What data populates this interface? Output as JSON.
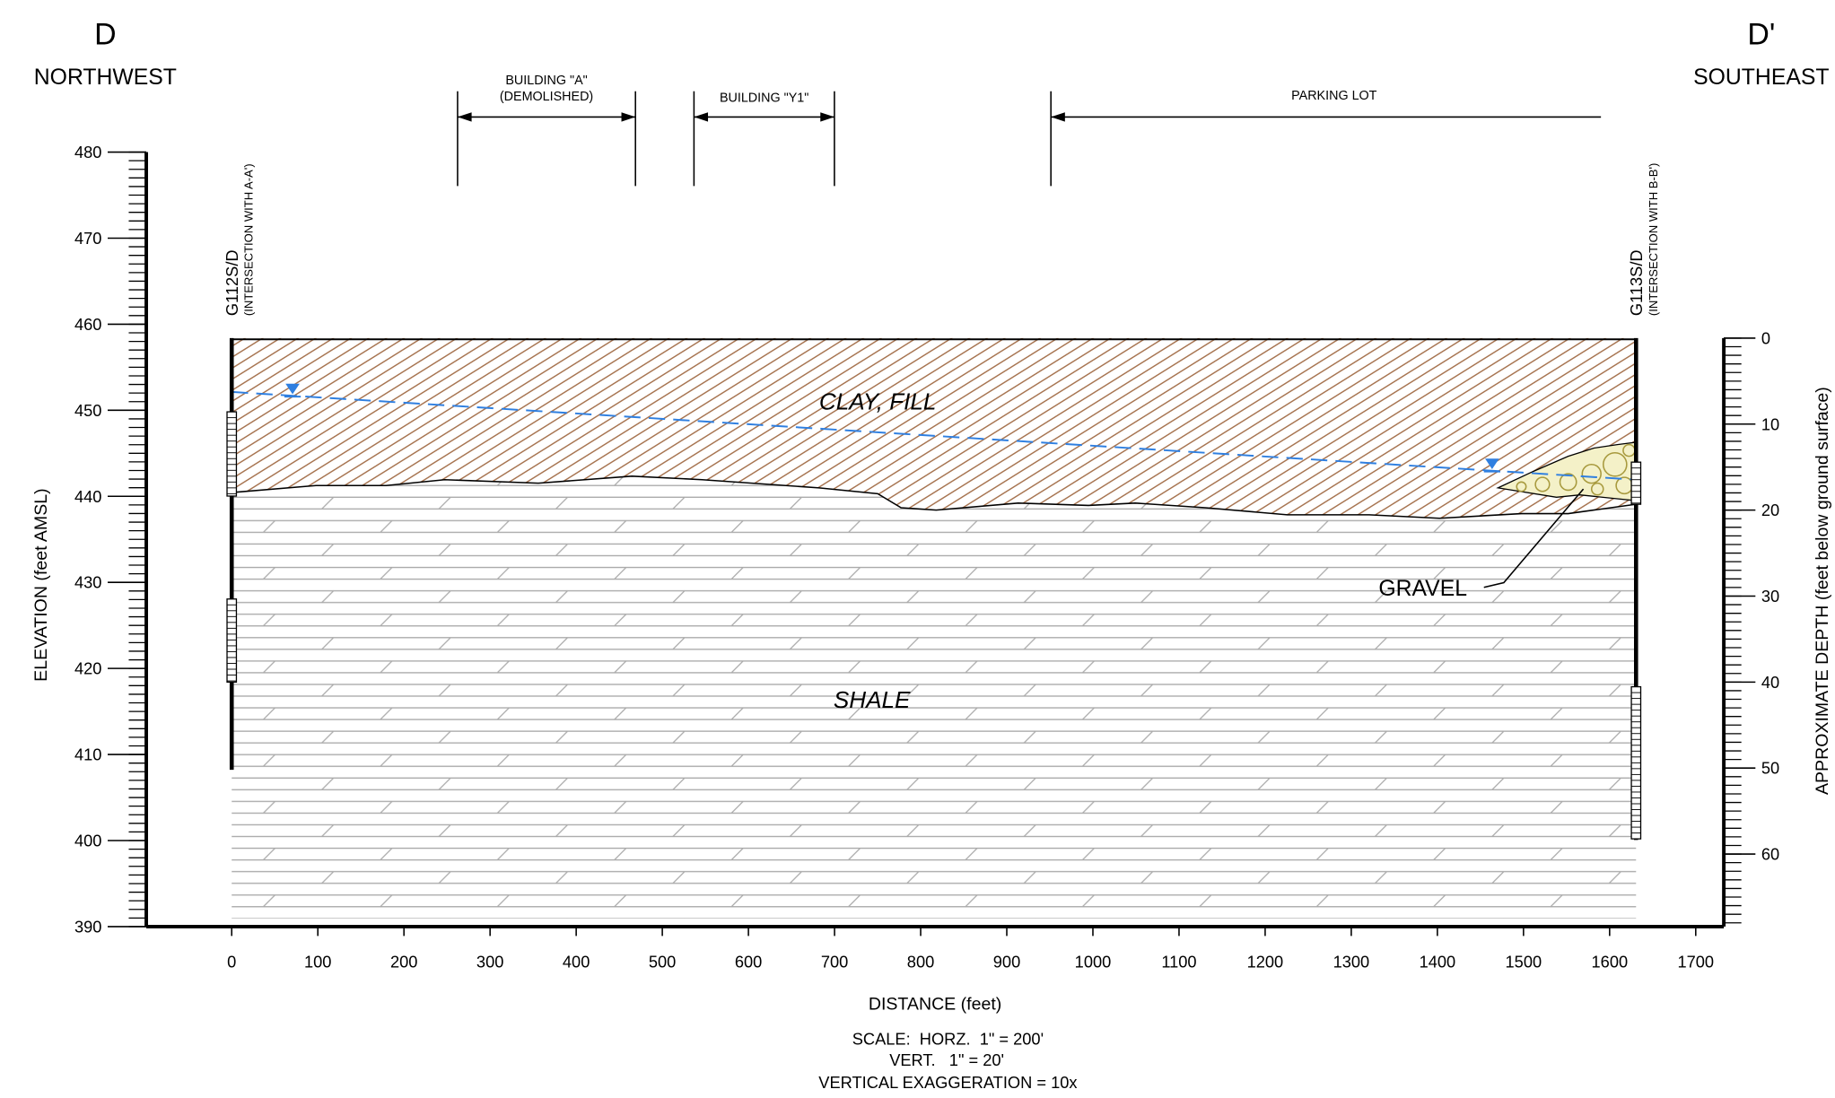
{
  "header": {
    "left_label": "D",
    "left_direction": "NORTHWEST",
    "right_label": "D'",
    "right_direction": "SOUTHEAST"
  },
  "features": [
    {
      "lines": [
        "BUILDING \"A\"",
        "(DEMOLISHED)"
      ]
    },
    {
      "lines": [
        "BUILDING \"Y1\""
      ]
    },
    {
      "lines": [
        "PARKING LOT"
      ]
    }
  ],
  "wells": [
    {
      "name": "G112S/D",
      "note": "(INTERSECTION WITH A-A')"
    },
    {
      "name": "G113S/D",
      "note": "(INTERSECTION WITH B-B')"
    }
  ],
  "layers": {
    "clay": "CLAY, FILL",
    "shale": "SHALE",
    "gravel": "GRAVEL"
  },
  "x_axis": {
    "title": "DISTANCE (feet)",
    "ticks": [
      0,
      100,
      200,
      300,
      400,
      500,
      600,
      700,
      800,
      900,
      1000,
      1100,
      1200,
      1300,
      1400,
      1500,
      1600,
      1700
    ]
  },
  "y_axis": {
    "title": "ELEVATION (feet AMSL)",
    "ticks": [
      390,
      400,
      410,
      420,
      430,
      440,
      450,
      460,
      470,
      480
    ]
  },
  "y2_axis": {
    "title": "APPROXIMATE DEPTH (feet below ground surface)",
    "ticks": [
      0,
      10,
      20,
      30,
      40,
      50,
      60
    ]
  },
  "scale_note": [
    "SCALE:  HORZ.  1\" = 200'",
    "VERT.   1\" = 20'",
    "VERTICAL EXAGGERATION = 10x"
  ]
}
